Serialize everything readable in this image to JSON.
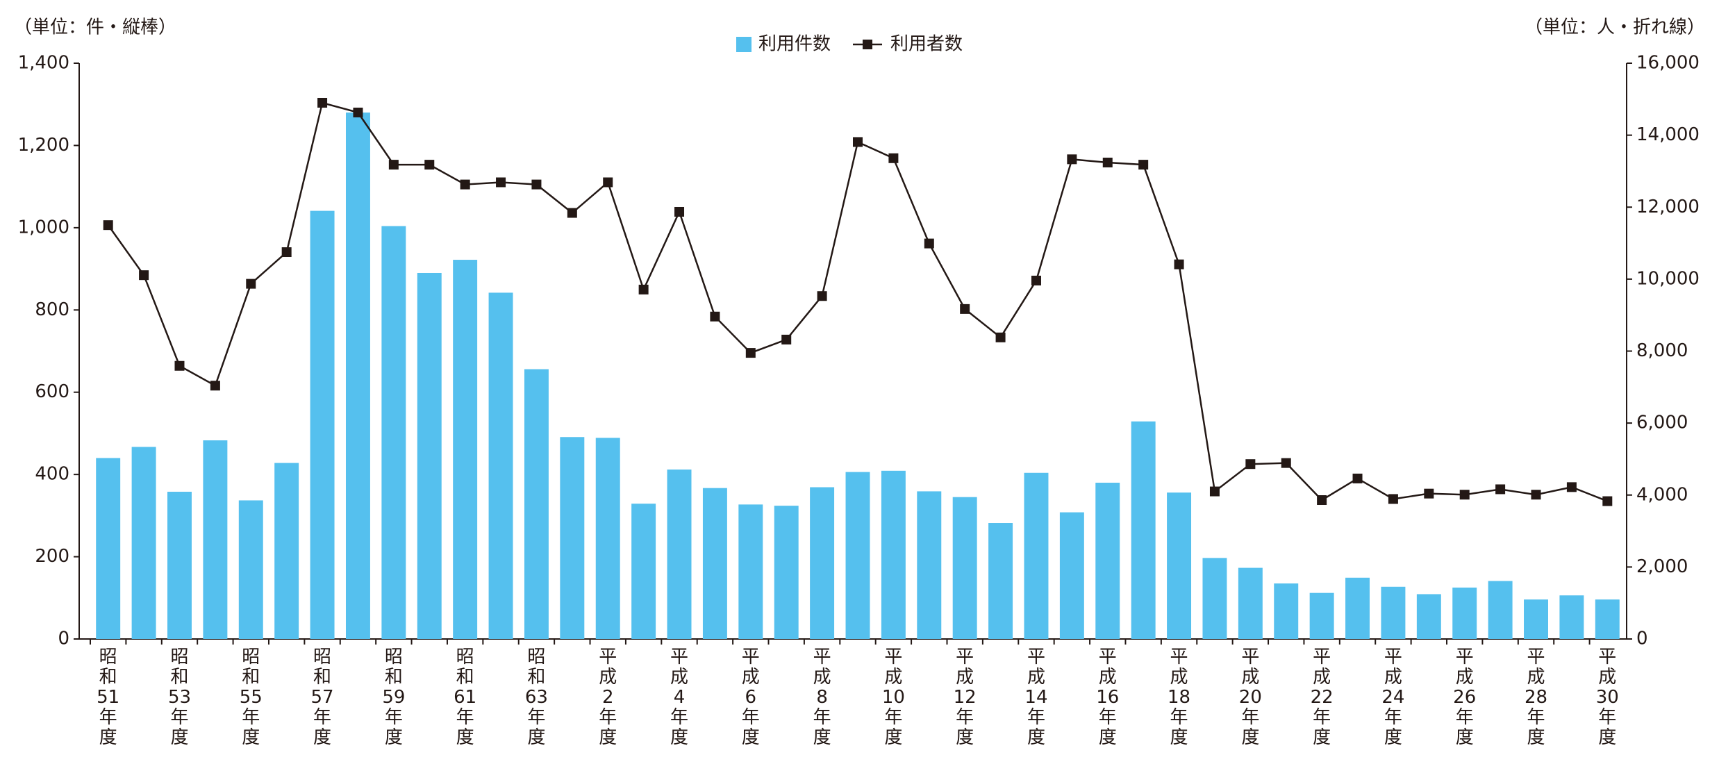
{
  "chart_data": {
    "type": "bar_line",
    "y_label": "（単位：件・縦棒）",
    "y2_label": "（単位：人・折れ線）",
    "categories": [
      "昭和51年度",
      null,
      "昭和53年度",
      null,
      "昭和55年度",
      null,
      "昭和57年度",
      null,
      "昭和59年度",
      null,
      "昭和61年度",
      null,
      "昭和63年度",
      null,
      "平成2年度",
      null,
      "平成4年度",
      null,
      "平成6年度",
      null,
      "平成8年度",
      null,
      "平成10年度",
      null,
      "平成12年度",
      null,
      "平成14年度",
      null,
      "平成16年度",
      null,
      "平成18年度",
      null,
      "平成20年度",
      null,
      "平成22年度",
      null,
      "平成24年度",
      null,
      "平成26年度",
      null,
      "平成28年度",
      null,
      "平成30年度"
    ],
    "series": [
      {
        "name": "利用件数",
        "type": "bar",
        "color": "#55c0ee",
        "values": [
          440,
          467,
          358,
          483,
          337,
          428,
          1041,
          1280,
          1004,
          890,
          922,
          842,
          656,
          491,
          489,
          329,
          412,
          367,
          327,
          324,
          369,
          406,
          409,
          359,
          345,
          282,
          404,
          308,
          380,
          529,
          356,
          197,
          173,
          135,
          112,
          149,
          127,
          109,
          125,
          141,
          96,
          106,
          96
        ]
      },
      {
        "name": "利用者数",
        "type": "line",
        "axis": "y2",
        "color": "#231815",
        "values": [
          11500,
          10110,
          7590,
          7040,
          9870,
          10750,
          14900,
          14630,
          13180,
          13180,
          12630,
          12690,
          12630,
          11840,
          12690,
          9710,
          11870,
          8960,
          7950,
          8320,
          9530,
          13810,
          13360,
          10990,
          9170,
          8380,
          9960,
          13330,
          13240,
          13180,
          10410,
          4100,
          4860,
          4890,
          3860,
          4460,
          3890,
          4040,
          4010,
          4160,
          4010,
          4220,
          3830
        ]
      }
    ],
    "ylim": [
      0,
      1400
    ],
    "yticks": [
      0,
      200,
      400,
      600,
      800,
      {
        "value": 1000,
        "label": "1,000"
      },
      {
        "value": 1200,
        "label": "1,200"
      },
      {
        "value": 1400,
        "label": "1,400"
      }
    ],
    "y2lim": [
      0,
      16000
    ],
    "y2ticks": [
      0,
      {
        "value": 2000,
        "label": "2,000"
      },
      {
        "value": 4000,
        "label": "4,000"
      },
      {
        "value": 6000,
        "label": "6,000"
      },
      {
        "value": 8000,
        "label": "8,000"
      },
      {
        "value": 10000,
        "label": "10,000"
      },
      {
        "value": 12000,
        "label": "12,000"
      },
      {
        "value": 14000,
        "label": "14,000"
      },
      {
        "value": 16000,
        "label": "16,000"
      }
    ],
    "grid": false,
    "legend": "top"
  }
}
